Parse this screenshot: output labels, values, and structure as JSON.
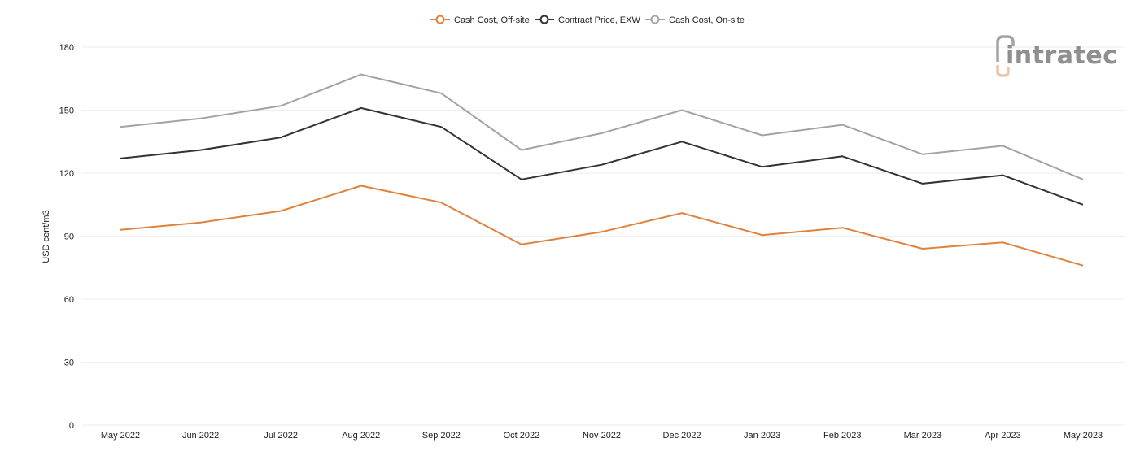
{
  "chart_data": {
    "type": "line",
    "categories": [
      "May 2022",
      "Jun 2022",
      "Jul 2022",
      "Aug 2022",
      "Sep 2022",
      "Oct 2022",
      "Nov 2022",
      "Dec 2022",
      "Jan 2023",
      "Feb 2023",
      "Mar 2023",
      "Apr 2023",
      "May 2023"
    ],
    "series": [
      {
        "name": "Cash Cost, Off-site",
        "color": "#e0823c",
        "values": [
          93,
          96.5,
          102,
          114,
          106,
          86,
          92,
          101,
          90.5,
          94,
          84,
          87,
          76
        ]
      },
      {
        "name": "Contract Price, EXW",
        "color": "#333333",
        "values": [
          127,
          131,
          137,
          151,
          142,
          117,
          124,
          135,
          123,
          128,
          115,
          119,
          105
        ]
      },
      {
        "name": "Cash Cost, On-site",
        "color": "#a3a3a3",
        "values": [
          142,
          146,
          152,
          167,
          158,
          131,
          139,
          150,
          138,
          143,
          129,
          133,
          117
        ]
      }
    ],
    "ylabel": "USD cent/m3",
    "ylim": [
      0,
      180
    ],
    "yticks": [
      0,
      30,
      60,
      90,
      120,
      150,
      180
    ],
    "grid": true,
    "legend_position": "top-center"
  },
  "logo": {
    "text": "intratec",
    "icon": "intratec-logo-icon"
  }
}
